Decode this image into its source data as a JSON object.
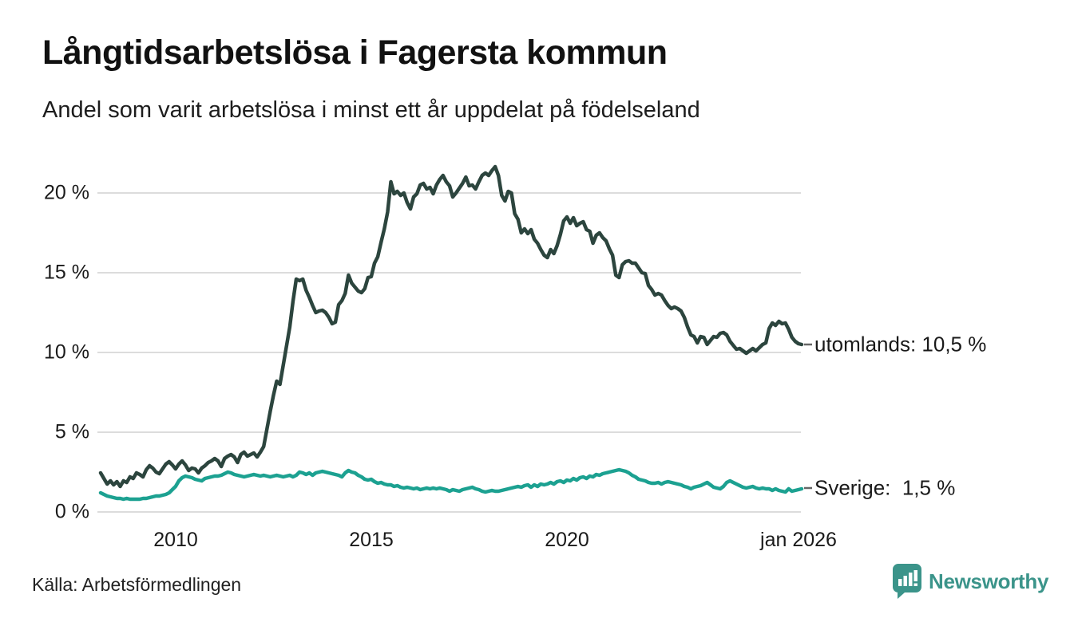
{
  "title": "Långtidsarbetslösa i Fagersta kommun",
  "subtitle": "Andel som varit arbetslösa i minst ett år uppdelat på födelseland",
  "source": "Källa: Arbetsförmedlingen",
  "brand": {
    "name": "Newsworthy",
    "color": "#3b948a"
  },
  "y_axis": {
    "labels": [
      "20 %",
      "15 %",
      "10 %",
      "5 %",
      "0 %"
    ]
  },
  "x_axis": {
    "labels": [
      "2010",
      "2015",
      "2020",
      "jan 2026"
    ]
  },
  "chart_data": {
    "type": "line",
    "title": "Långtidsarbetslösa i Fagersta kommun",
    "subtitle": "Andel som varit arbetslösa i minst ett år uppdelat på födelseland",
    "unit": "%",
    "frequency": "monthly",
    "x_start": "2008-02",
    "x_end": "2026-01",
    "x_tick_labels": [
      "2010",
      "2015",
      "2020",
      "jan 2026"
    ],
    "y_ticks": [
      0,
      5,
      10,
      15,
      20
    ],
    "ylim": [
      0,
      22
    ],
    "grid": "horizontal",
    "legend": "end-of-line-labels",
    "series": [
      {
        "name": "utomlands",
        "end_label": "utomlands: 10,5 %",
        "end_value": 10.5,
        "color": "#2c453e",
        "values": [
          2.45,
          2.1,
          1.75,
          1.95,
          1.7,
          1.9,
          1.6,
          1.95,
          1.85,
          2.2,
          2.1,
          2.45,
          2.35,
          2.2,
          2.65,
          2.9,
          2.75,
          2.5,
          2.4,
          2.7,
          3.0,
          3.15,
          2.95,
          2.7,
          3.0,
          3.2,
          2.95,
          2.6,
          2.75,
          2.7,
          2.45,
          2.75,
          2.9,
          3.1,
          3.2,
          3.35,
          3.2,
          2.85,
          3.35,
          3.5,
          3.6,
          3.45,
          3.1,
          3.6,
          3.75,
          3.5,
          3.6,
          3.7,
          3.45,
          3.75,
          4.1,
          5.2,
          6.3,
          7.3,
          8.2,
          8.0,
          9.2,
          10.4,
          11.6,
          13.2,
          14.6,
          14.5,
          14.6,
          13.9,
          13.45,
          12.95,
          12.5,
          12.6,
          12.65,
          12.5,
          12.2,
          11.8,
          11.9,
          13.0,
          13.25,
          13.7,
          14.85,
          14.35,
          14.1,
          13.85,
          13.75,
          14.0,
          14.7,
          14.75,
          15.6,
          16.0,
          16.9,
          17.75,
          18.8,
          20.7,
          19.95,
          20.1,
          19.85,
          20.0,
          19.4,
          19.0,
          19.75,
          19.95,
          20.5,
          20.6,
          20.25,
          20.35,
          19.95,
          20.5,
          20.85,
          21.1,
          20.7,
          20.45,
          19.75,
          20.0,
          20.3,
          20.6,
          21.0,
          20.45,
          20.5,
          20.25,
          20.7,
          21.1,
          21.25,
          21.1,
          21.4,
          21.65,
          21.1,
          19.85,
          19.5,
          20.1,
          20.0,
          18.7,
          18.35,
          17.5,
          17.75,
          17.45,
          17.7,
          17.1,
          16.85,
          16.45,
          16.1,
          15.95,
          16.45,
          16.2,
          16.7,
          17.4,
          18.25,
          18.5,
          18.1,
          18.45,
          17.95,
          18.1,
          18.2,
          17.7,
          17.6,
          16.85,
          17.35,
          17.5,
          17.2,
          17.0,
          16.5,
          16.1,
          14.85,
          14.7,
          15.5,
          15.7,
          15.75,
          15.6,
          15.6,
          15.3,
          15.0,
          14.95,
          14.2,
          13.95,
          13.6,
          13.7,
          13.6,
          13.25,
          12.95,
          12.75,
          12.85,
          12.75,
          12.6,
          12.2,
          11.6,
          11.1,
          11.0,
          10.6,
          11.0,
          10.95,
          10.5,
          10.75,
          11.0,
          10.95,
          11.2,
          11.25,
          11.1,
          10.7,
          10.45,
          10.2,
          10.25,
          10.1,
          9.95,
          10.1,
          10.25,
          10.1,
          10.3,
          10.5,
          10.6,
          11.5,
          11.85,
          11.7,
          11.95,
          11.8,
          11.85,
          11.45,
          10.95,
          10.7,
          10.55,
          10.5
        ]
      },
      {
        "name": "Sverige",
        "end_label": "Sverige:  1,5 %",
        "end_value": 1.5,
        "color": "#1ca191",
        "values": [
          1.2,
          1.1,
          1.0,
          0.95,
          0.9,
          0.85,
          0.85,
          0.8,
          0.85,
          0.8,
          0.8,
          0.8,
          0.8,
          0.85,
          0.85,
          0.9,
          0.95,
          1.0,
          1.0,
          1.05,
          1.1,
          1.2,
          1.4,
          1.6,
          1.95,
          2.15,
          2.25,
          2.2,
          2.15,
          2.05,
          2.0,
          1.95,
          2.1,
          2.15,
          2.2,
          2.25,
          2.25,
          2.3,
          2.4,
          2.5,
          2.45,
          2.35,
          2.3,
          2.25,
          2.2,
          2.25,
          2.3,
          2.35,
          2.3,
          2.25,
          2.3,
          2.25,
          2.2,
          2.25,
          2.3,
          2.25,
          2.2,
          2.25,
          2.3,
          2.2,
          2.3,
          2.5,
          2.45,
          2.35,
          2.45,
          2.3,
          2.45,
          2.5,
          2.55,
          2.5,
          2.45,
          2.4,
          2.35,
          2.3,
          2.2,
          2.45,
          2.6,
          2.5,
          2.45,
          2.3,
          2.2,
          2.05,
          2.0,
          2.05,
          1.9,
          1.8,
          1.85,
          1.75,
          1.7,
          1.7,
          1.6,
          1.65,
          1.55,
          1.5,
          1.55,
          1.5,
          1.45,
          1.5,
          1.4,
          1.45,
          1.5,
          1.45,
          1.5,
          1.45,
          1.5,
          1.45,
          1.4,
          1.3,
          1.4,
          1.35,
          1.3,
          1.4,
          1.45,
          1.5,
          1.55,
          1.45,
          1.4,
          1.3,
          1.25,
          1.3,
          1.35,
          1.3,
          1.3,
          1.35,
          1.4,
          1.45,
          1.5,
          1.55,
          1.6,
          1.55,
          1.65,
          1.7,
          1.55,
          1.7,
          1.6,
          1.75,
          1.7,
          1.75,
          1.85,
          1.75,
          1.9,
          1.95,
          1.85,
          2.0,
          1.95,
          2.1,
          2.0,
          2.15,
          2.2,
          2.1,
          2.25,
          2.2,
          2.35,
          2.3,
          2.4,
          2.45,
          2.5,
          2.55,
          2.6,
          2.65,
          2.6,
          2.55,
          2.45,
          2.3,
          2.2,
          2.05,
          2.0,
          1.95,
          1.85,
          1.8,
          1.8,
          1.85,
          1.75,
          1.85,
          1.9,
          1.85,
          1.8,
          1.75,
          1.7,
          1.6,
          1.55,
          1.45,
          1.55,
          1.6,
          1.65,
          1.75,
          1.85,
          1.7,
          1.55,
          1.5,
          1.45,
          1.6,
          1.85,
          1.95,
          1.85,
          1.75,
          1.65,
          1.55,
          1.5,
          1.55,
          1.6,
          1.5,
          1.45,
          1.5,
          1.45,
          1.45,
          1.35,
          1.45,
          1.35,
          1.3,
          1.25,
          1.45,
          1.3,
          1.35,
          1.4,
          1.45
        ]
      }
    ]
  },
  "layout_colors": {
    "grid": "#dcdcdc",
    "end_dash": "#666666",
    "text": "#1a1a1a"
  }
}
